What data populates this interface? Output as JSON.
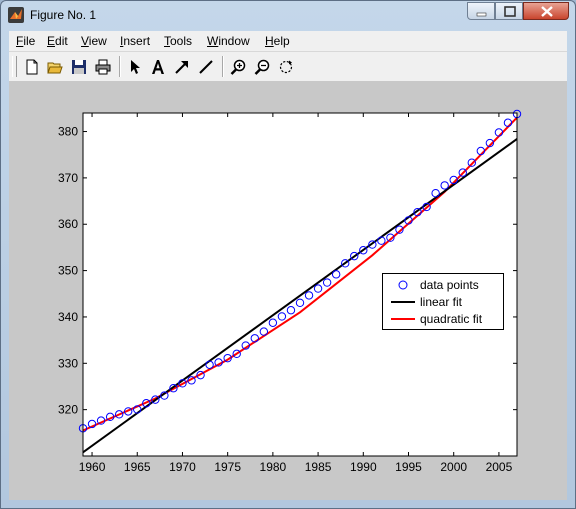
{
  "window": {
    "title": "Figure No. 1",
    "controls": [
      "minimize",
      "maximize",
      "close"
    ]
  },
  "menu": [
    "File",
    "Edit",
    "View",
    "Insert",
    "Tools",
    "Window",
    "Help"
  ],
  "toolbar": [
    {
      "name": "new-figure",
      "icon": "blank-page-icon"
    },
    {
      "name": "open-file",
      "icon": "open-folder-icon"
    },
    {
      "name": "save-figure",
      "icon": "floppy-disk-icon"
    },
    {
      "name": "print-figure",
      "icon": "printer-icon"
    },
    {
      "name": "edit-plot",
      "icon": "pointer-arrow-icon"
    },
    {
      "name": "insert-text",
      "icon": "letter-a-icon"
    },
    {
      "name": "insert-arrow",
      "icon": "arrow-icon"
    },
    {
      "name": "insert-line",
      "icon": "line-icon"
    },
    {
      "name": "zoom-in",
      "icon": "zoom-in-icon"
    },
    {
      "name": "zoom-out",
      "icon": "zoom-out-icon"
    },
    {
      "name": "rotate-3d",
      "icon": "rotate-icon"
    }
  ],
  "colors": {
    "data_points": "#0000ff",
    "linear_fit": "#000000",
    "quadratic_fit": "#ff0000",
    "figure_background": "#c8c8c8",
    "axes_background": "#ffffff"
  },
  "chart_data": {
    "type": "scatter",
    "title": "",
    "xlabel": "",
    "ylabel": "",
    "xlim": [
      1959,
      2007
    ],
    "ylim": [
      310,
      384
    ],
    "xticks": [
      1960,
      1965,
      1970,
      1975,
      1980,
      1985,
      1990,
      1995,
      2000,
      2005
    ],
    "yticks": [
      320,
      330,
      340,
      350,
      360,
      370,
      380
    ],
    "grid": false,
    "legend": {
      "position": "right",
      "entries": [
        "data points",
        "linear fit",
        "quadratic fit"
      ]
    },
    "series": [
      {
        "name": "data points",
        "marker": "circle",
        "x": [
          1959,
          1960,
          1961,
          1962,
          1963,
          1964,
          1965,
          1966,
          1967,
          1968,
          1969,
          1970,
          1971,
          1972,
          1973,
          1974,
          1975,
          1976,
          1977,
          1978,
          1979,
          1980,
          1981,
          1982,
          1983,
          1984,
          1985,
          1986,
          1987,
          1988,
          1989,
          1990,
          1991,
          1992,
          1993,
          1994,
          1995,
          1996,
          1997,
          1998,
          1999,
          2000,
          2001,
          2002,
          2003,
          2004,
          2005,
          2006,
          2007
        ],
        "y": [
          315.98,
          316.91,
          317.64,
          318.45,
          318.99,
          319.62,
          320.04,
          321.38,
          322.16,
          323.04,
          324.62,
          325.68,
          326.32,
          327.45,
          329.68,
          330.18,
          331.11,
          332.04,
          333.83,
          335.4,
          336.84,
          338.75,
          340.11,
          341.45,
          343.05,
          344.65,
          346.12,
          347.42,
          349.19,
          351.57,
          353.12,
          354.39,
          355.61,
          356.45,
          357.1,
          358.83,
          360.82,
          362.61,
          363.73,
          366.7,
          368.38,
          369.55,
          371.14,
          373.28,
          375.8,
          377.52,
          379.8,
          381.9,
          383.79
        ]
      },
      {
        "name": "linear fit",
        "type": "line",
        "x": [
          1959,
          2007
        ],
        "y": [
          310.8,
          378.4
        ]
      },
      {
        "name": "quadratic fit",
        "type": "line",
        "x": [
          1959,
          1967,
          1975,
          1983,
          1991,
          1999,
          2007
        ],
        "y": [
          315.5,
          322.4,
          330.8,
          341.0,
          353.3,
          367.0,
          383.0
        ]
      }
    ]
  }
}
